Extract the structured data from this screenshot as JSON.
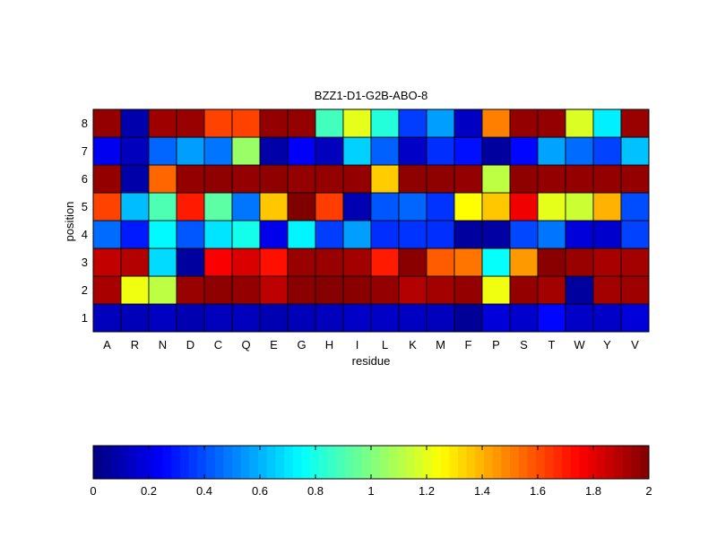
{
  "chart_data": [
    {
      "type": "heatmap",
      "title": "BZZ1-D1-G2B-ABO-8",
      "xlabel": "residue",
      "ylabel": "position",
      "x_categories": [
        "A",
        "R",
        "N",
        "D",
        "C",
        "Q",
        "E",
        "G",
        "H",
        "I",
        "L",
        "K",
        "M",
        "F",
        "P",
        "S",
        "T",
        "W",
        "Y",
        "V"
      ],
      "y_categories": [
        "1",
        "2",
        "3",
        "4",
        "5",
        "6",
        "7",
        "8"
      ],
      "colormap": "jet",
      "clim": [
        0,
        2
      ],
      "values": [
        [
          0.12,
          0.11,
          0.13,
          0.1,
          0.12,
          0.12,
          0.1,
          0.11,
          0.12,
          0.14,
          0.14,
          0.13,
          0.12,
          0.05,
          0.18,
          0.15,
          0.26,
          0.14,
          0.14,
          0.18
        ],
        [
          1.92,
          1.22,
          1.12,
          1.95,
          1.97,
          1.96,
          1.88,
          1.98,
          1.99,
          1.98,
          1.96,
          1.9,
          1.93,
          1.96,
          1.22,
          1.96,
          1.93,
          0.06,
          1.93,
          1.94
        ],
        [
          1.87,
          1.9,
          0.68,
          0.06,
          1.76,
          1.82,
          1.72,
          1.95,
          1.95,
          1.93,
          1.7,
          1.98,
          1.57,
          1.52,
          0.76,
          1.45,
          1.98,
          1.95,
          1.92,
          1.93
        ],
        [
          0.46,
          0.3,
          0.74,
          0.42,
          0.7,
          0.79,
          0.21,
          0.73,
          0.37,
          0.56,
          0.34,
          0.35,
          0.34,
          0.06,
          0.07,
          0.39,
          0.48,
          0.18,
          0.15,
          0.38
        ],
        [
          1.62,
          0.62,
          0.9,
          1.7,
          0.93,
          0.48,
          1.36,
          2.0,
          1.63,
          0.1,
          0.42,
          0.45,
          0.35,
          1.25,
          1.36,
          1.78,
          1.2,
          1.15,
          1.4,
          0.4
        ],
        [
          1.96,
          0.08,
          1.55,
          1.96,
          1.97,
          1.96,
          1.97,
          1.96,
          1.96,
          1.96,
          1.35,
          1.97,
          1.97,
          1.96,
          1.12,
          1.97,
          1.96,
          1.96,
          1.96,
          1.96
        ],
        [
          0.22,
          0.12,
          0.45,
          0.56,
          0.48,
          1.05,
          0.08,
          0.24,
          0.12,
          0.66,
          0.44,
          0.14,
          0.34,
          0.28,
          0.06,
          0.26,
          0.57,
          0.46,
          0.38,
          0.63
        ],
        [
          1.96,
          0.09,
          1.94,
          1.95,
          1.62,
          1.62,
          1.96,
          1.96,
          0.88,
          1.2,
          0.82,
          0.37,
          0.56,
          0.13,
          1.5,
          1.96,
          1.96,
          1.18,
          0.72,
          1.95
        ]
      ],
      "colorbar": {
        "orientation": "horizontal",
        "ticks": [
          "0",
          "0.2",
          "0.4",
          "0.6",
          "0.8",
          "1",
          "1.2",
          "1.4",
          "1.6",
          "1.8",
          "2"
        ]
      },
      "grid": false
    }
  ]
}
